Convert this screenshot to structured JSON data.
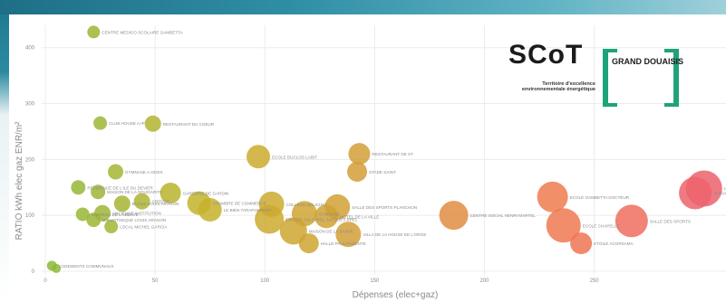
{
  "logo": {
    "brand": "SCoT",
    "brand_suffix": "GRAND DOUAISIS",
    "tagline": "Territoire d'excellence environnementale énergétique"
  },
  "chart_data": {
    "type": "scatter",
    "xlabel": "Dépenses (elec+gaz)",
    "ylabel": "RATIO kWh elec gaz ENR/m²",
    "xlim": [
      0,
      310
    ],
    "ylim": [
      0,
      440
    ],
    "xticks": [
      0,
      50,
      100,
      150,
      200,
      250
    ],
    "yticks": [
      0,
      100,
      200,
      300,
      400
    ],
    "grid": true,
    "size_encodes": "Dépenses (elec+gaz)",
    "color_scale": [
      "#8ab83a",
      "#c9b22a",
      "#d49a3a",
      "#ef7a4f",
      "#ec5e72"
    ],
    "points": [
      {
        "label": "CENTRE MEDICO SCOLAIRE GAMBETTA",
        "x": 22,
        "y": 428,
        "size": 14
      },
      {
        "label": "CLUB HOUSE A.IP",
        "x": 25,
        "y": 265,
        "size": 15
      },
      {
        "label": "RESTAURANT DU COEUR",
        "x": 49,
        "y": 264,
        "size": 18
      },
      {
        "label": "ECOLE DUCLOS LABIT",
        "x": 97,
        "y": 205,
        "size": 26
      },
      {
        "label": "RESTAURANT DE ST",
        "x": 143,
        "y": 210,
        "size": 24
      },
      {
        "label": "STADE SAINT",
        "x": 142,
        "y": 178,
        "size": 22
      },
      {
        "label": "GYMNASE A.OGES",
        "x": 32,
        "y": 178,
        "size": 17
      },
      {
        "label": "RESIDENCE DE L'ILE DU DEVIER",
        "x": 15,
        "y": 150,
        "size": 16
      },
      {
        "label": "MAISON DE LA SOLIDARITE",
        "x": 24,
        "y": 142,
        "size": 16
      },
      {
        "label": "GARDERIE DE GARDIN",
        "x": 57,
        "y": 140,
        "size": 23
      },
      {
        "label": "ECOLE LOUIS ARAGON",
        "x": 35,
        "y": 121,
        "size": 18
      },
      {
        "label": "CREDOC",
        "x": 44,
        "y": 125,
        "size": 18
      },
      {
        "label": "CHAMBRE DE COMMERCE",
        "x": 70,
        "y": 122,
        "size": 26
      },
      {
        "label": "LE BIEN TARAFOURNET",
        "x": 75,
        "y": 110,
        "size": 26
      },
      {
        "label": "ANCIENNE INSTITUTION",
        "x": 26,
        "y": 104,
        "size": 18
      },
      {
        "label": "CHATEAU DE L'ABBAYE",
        "x": 17,
        "y": 102,
        "size": 15
      },
      {
        "label": "BIBLIOTHEQUE LOUIS ARAGON",
        "x": 22,
        "y": 92,
        "size": 16
      },
      {
        "label": "LOCAL MICHEL GARCIA",
        "x": 30,
        "y": 80,
        "size": 15
      },
      {
        "label": "COLLEGE DOUCHET",
        "x": 103,
        "y": 120,
        "size": 28
      },
      {
        "label": "GYMNASE",
        "x": 118,
        "y": 103,
        "size": 28
      },
      {
        "label": "SALLE DES SPORTS PLANCHON",
        "x": 133,
        "y": 115,
        "size": 28
      },
      {
        "label": "ESPACE CULTUREL JACQUES BREL",
        "x": 102,
        "y": 93,
        "size": 32
      },
      {
        "label": "MAISON DE LA SANTE",
        "x": 113,
        "y": 72,
        "size": 30
      },
      {
        "label": "HOTEL DE LA VILLE",
        "x": 128,
        "y": 98,
        "size": 26
      },
      {
        "label": "VILLA DE LA HOUSE DE L'ORGE",
        "x": 138,
        "y": 66,
        "size": 28
      },
      {
        "label": "HALLE PAUL PARENTE",
        "x": 120,
        "y": 50,
        "size": 22
      },
      {
        "label": "CENTRE SOCIAL HENRI MARTEL",
        "x": 186,
        "y": 100,
        "size": 32
      },
      {
        "label": "ECOLE GAMBETTA DOCTEUR",
        "x": 231,
        "y": 133,
        "size": 34
      },
      {
        "label": "SERVICES TECHNIQUES",
        "x": 296,
        "y": 140,
        "size": 36
      },
      {
        "label": "HOTEL DE VILLE",
        "x": 300,
        "y": 148,
        "size": 40
      },
      {
        "label": "SALLE DES SPORTS",
        "x": 267,
        "y": 90,
        "size": 36
      },
      {
        "label": "ECOLE CHAPELLE",
        "x": 236,
        "y": 82,
        "size": 38
      },
      {
        "label": "ETOILE ACORSAMA",
        "x": 244,
        "y": 50,
        "size": 24
      },
      {
        "label": "LOGEMENTS COMMUNAUX",
        "x": 3,
        "y": 10,
        "size": 11
      },
      {
        "label": "",
        "x": 5,
        "y": 5,
        "size": 10
      }
    ],
    "annotations": [
      "CENTRE MEDICO SCOLAIRE GAMBETTA",
      "CLUB HOUSE A.IP",
      "RESTAURANT DU COEUR",
      "ECOLE DUCLOS LABIT",
      "RESTAURANT CHASTE",
      "STADE SAINT",
      "GYMNASE A.OGES",
      "RESIDENCE DE L'ILE DU DEVIER",
      "MAISON DE LA SOLIDARITE",
      "CHAMBRE DE COMMERCE",
      "LE BIEN TARAFOURNET",
      "GARDERIE DE GARDIN",
      "COLLEGE DOUCHET",
      "SALLE DES SPORTS PLANCHON",
      "ESPACE CULTUREL JACQUES BREL",
      "MAISON DE LA SANTE",
      "VILLA DE LA HOUSE DE L'ORGE",
      "HALLE PAUL PARENTE",
      "CENTRE SOCIAL HENRI MARTEL",
      "SERVICES TECHNIQUES",
      "HOTEL DE VILLE",
      "ECOLE GAMBETTA DOCTEUR",
      "SALLE DES SPORTS",
      "ETOILE ACORSAMA",
      "ANCIENNE INSTITUTION",
      "CHATEAU DE L'ABBAYE",
      "BIBLIOTHEQUE LOUIS ARAGON",
      "LOCAL MICHEL GARCIA",
      "LOGEMENTS COMMUNAUX"
    ]
  }
}
